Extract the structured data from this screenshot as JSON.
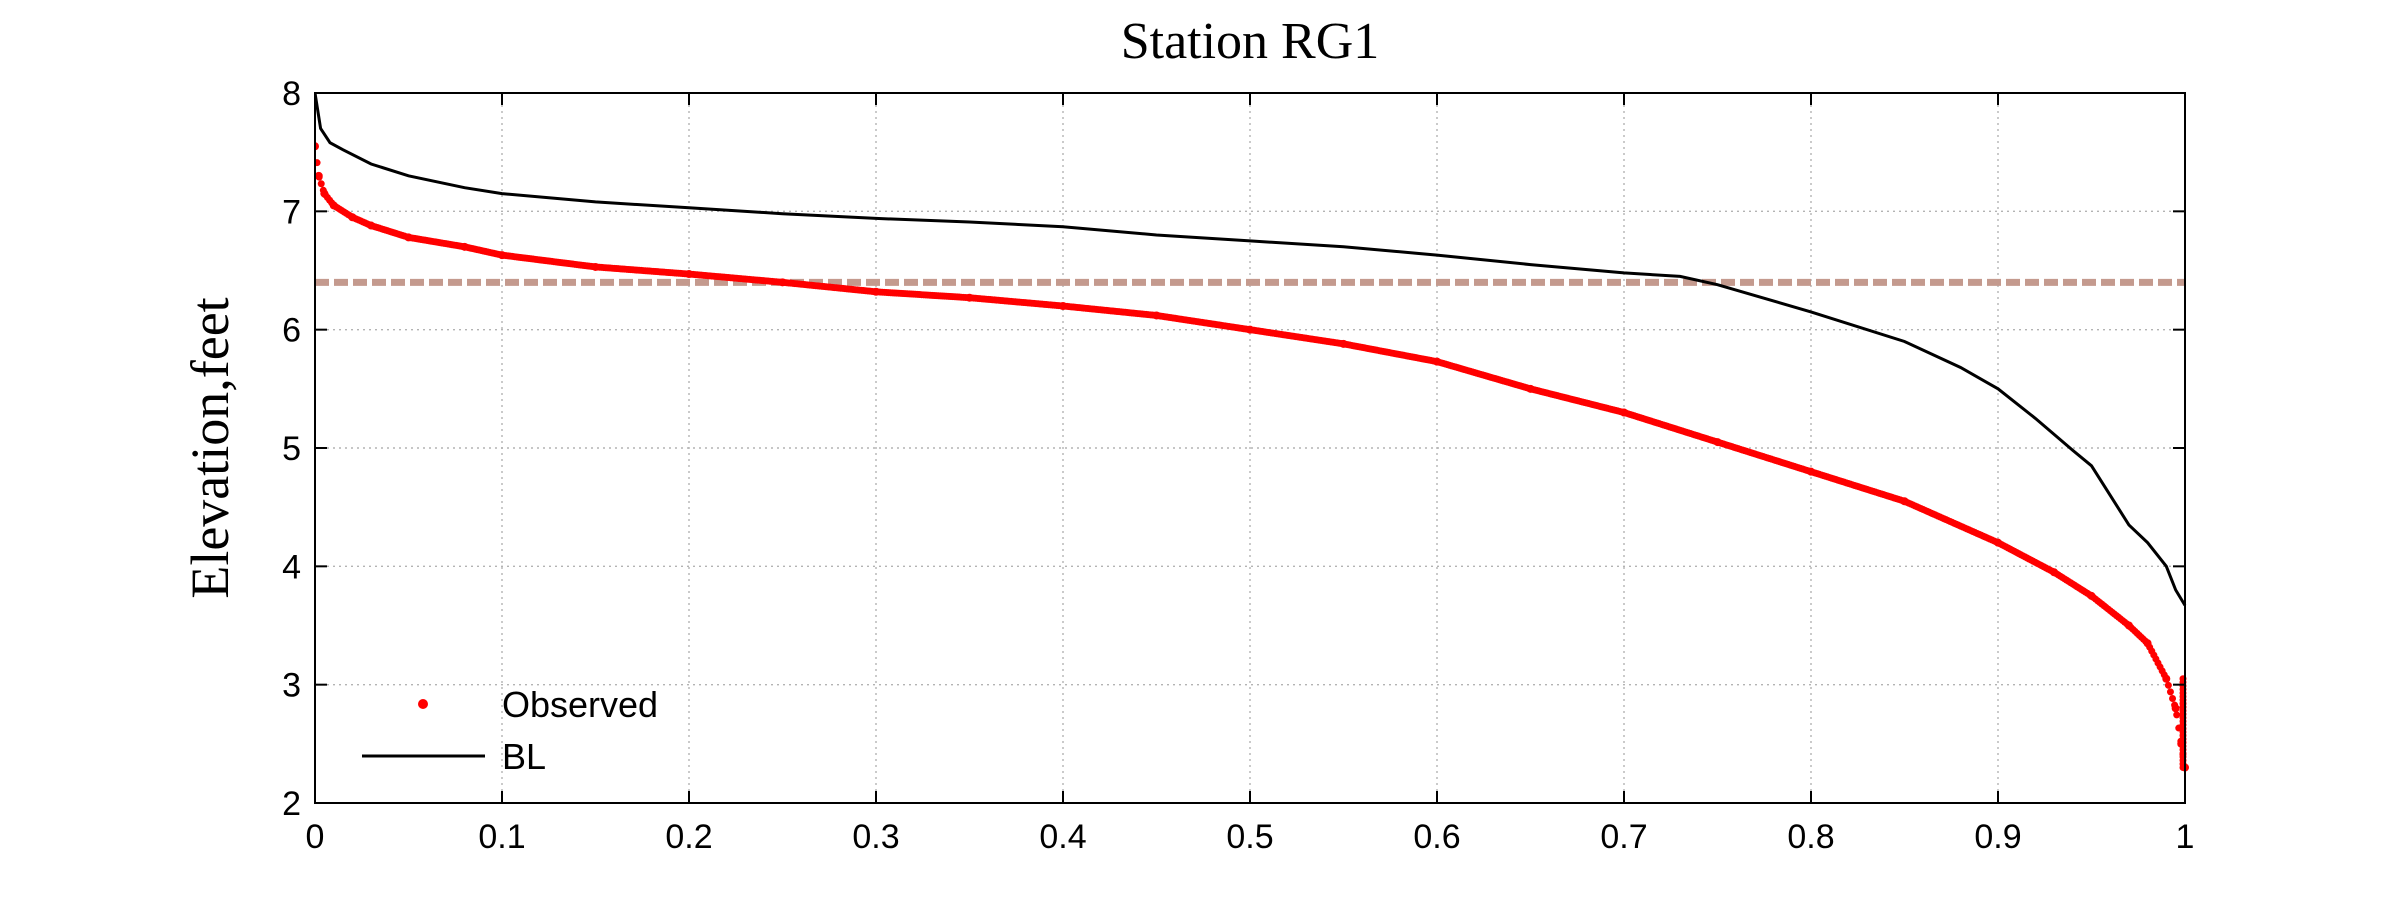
{
  "chart_data": {
    "type": "line",
    "title": "Station RG1",
    "xlabel": "",
    "ylabel": "Elevation,feet",
    "xlim": [
      0,
      1
    ],
    "ylim": [
      2,
      8
    ],
    "x_ticks": [
      0,
      0.1,
      0.2,
      0.3,
      0.4,
      0.5,
      0.6,
      0.7,
      0.8,
      0.9,
      1
    ],
    "x_tick_labels": [
      "0",
      "0.1",
      "0.2",
      "0.3",
      "0.4",
      "0.5",
      "0.6",
      "0.7",
      "0.8",
      "0.9",
      "1"
    ],
    "y_ticks": [
      2,
      3,
      4,
      5,
      6,
      7,
      8
    ],
    "y_tick_labels": [
      "2",
      "3",
      "4",
      "5",
      "6",
      "7",
      "8"
    ],
    "grid": true,
    "legend_position": "bottom-left",
    "reference_line": {
      "y": 6.4,
      "color": "#c49a8e",
      "style": "dashed"
    },
    "series": [
      {
        "name": "Observed",
        "style": "dots",
        "color": "#ff0000",
        "x": [
          0,
          0.002,
          0.005,
          0.01,
          0.02,
          0.03,
          0.05,
          0.08,
          0.1,
          0.15,
          0.2,
          0.25,
          0.3,
          0.35,
          0.4,
          0.45,
          0.5,
          0.55,
          0.6,
          0.65,
          0.7,
          0.75,
          0.8,
          0.85,
          0.9,
          0.93,
          0.95,
          0.97,
          0.98,
          0.99,
          0.995,
          0.998,
          1.0
        ],
        "y": [
          7.55,
          7.3,
          7.15,
          7.05,
          6.95,
          6.88,
          6.78,
          6.7,
          6.63,
          6.53,
          6.47,
          6.4,
          6.32,
          6.27,
          6.2,
          6.12,
          6.0,
          5.88,
          5.73,
          5.5,
          5.3,
          5.05,
          4.8,
          4.55,
          4.2,
          3.95,
          3.75,
          3.5,
          3.35,
          3.05,
          2.8,
          2.5,
          2.3
        ]
      },
      {
        "name": "BL",
        "style": "line",
        "color": "#000000",
        "x": [
          0,
          0.003,
          0.008,
          0.015,
          0.03,
          0.05,
          0.08,
          0.1,
          0.15,
          0.2,
          0.25,
          0.3,
          0.35,
          0.4,
          0.45,
          0.5,
          0.55,
          0.6,
          0.65,
          0.7,
          0.73,
          0.75,
          0.8,
          0.85,
          0.88,
          0.9,
          0.92,
          0.94,
          0.95,
          0.96,
          0.97,
          0.98,
          0.99,
          0.995,
          1.0
        ],
        "y": [
          8.0,
          7.7,
          7.58,
          7.52,
          7.4,
          7.3,
          7.2,
          7.15,
          7.08,
          7.03,
          6.98,
          6.94,
          6.91,
          6.87,
          6.8,
          6.75,
          6.7,
          6.63,
          6.55,
          6.48,
          6.45,
          6.38,
          6.15,
          5.9,
          5.68,
          5.5,
          5.25,
          4.98,
          4.85,
          4.6,
          4.35,
          4.2,
          4.0,
          3.8,
          3.67
        ]
      }
    ]
  }
}
